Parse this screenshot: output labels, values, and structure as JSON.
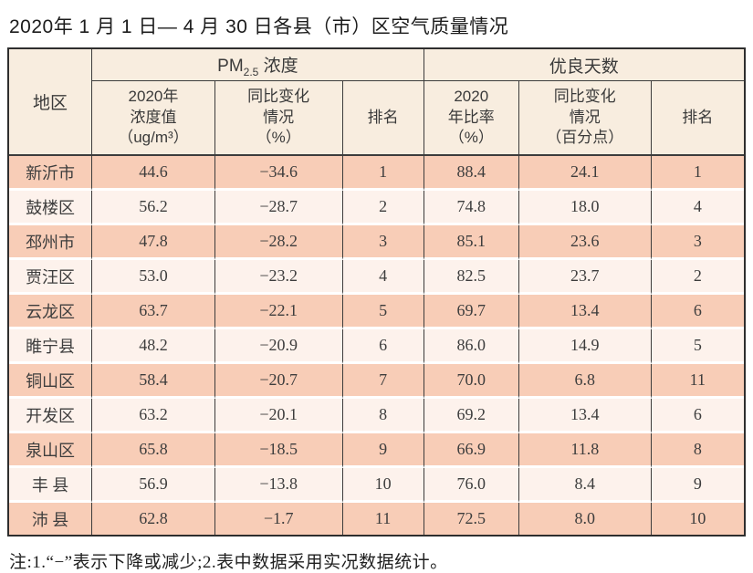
{
  "page": {
    "title": "2020年 1 月 1 日— 4 月 30 日各县（市）区空气质量情况",
    "note": "注:1.“−”表示下降或减少;2.表中数据采用实况数据统计。"
  },
  "table": {
    "corner_header": "地区",
    "groups": {
      "pm": {
        "prefix": "PM",
        "sub": "2.5",
        "suffix": " 浓度"
      },
      "good_days": {
        "label": "优良天数"
      }
    },
    "subheaders": {
      "pm_value": "2020年\n浓度值\n（ug/m³）",
      "pm_change": "同比变化\n情况\n（%）",
      "pm_rank": "排名",
      "good_ratio": "2020\n年比率\n（%）",
      "good_change": "同比变化\n情况\n（百分点）",
      "good_rank": "排名"
    },
    "rows": [
      {
        "region": "新沂市",
        "values": [
          "44.6",
          "−34.6",
          "1",
          "88.4",
          "24.1",
          "1"
        ]
      },
      {
        "region": "鼓楼区",
        "values": [
          "56.2",
          "−28.7",
          "2",
          "74.8",
          "18.0",
          "4"
        ]
      },
      {
        "region": "邳州市",
        "values": [
          "47.8",
          "−28.2",
          "3",
          "85.1",
          "23.6",
          "3"
        ]
      },
      {
        "region": "贾汪区",
        "values": [
          "53.0",
          "−23.2",
          "4",
          "82.5",
          "23.7",
          "2"
        ]
      },
      {
        "region": "云龙区",
        "values": [
          "63.7",
          "−22.1",
          "5",
          "69.7",
          "13.4",
          "6"
        ]
      },
      {
        "region": "睢宁县",
        "values": [
          "48.2",
          "−20.9",
          "6",
          "86.0",
          "14.9",
          "5"
        ]
      },
      {
        "region": "铜山区",
        "values": [
          "58.4",
          "−20.7",
          "7",
          "70.0",
          "6.8",
          "11"
        ]
      },
      {
        "region": "开发区",
        "values": [
          "63.2",
          "−20.1",
          "8",
          "69.2",
          "13.4",
          "6"
        ]
      },
      {
        "region": "泉山区",
        "values": [
          "65.8",
          "−18.5",
          "9",
          "66.9",
          "11.8",
          "8"
        ]
      },
      {
        "region": "丰 县",
        "values": [
          "56.9",
          "−13.8",
          "10",
          "76.0",
          "8.4",
          "9"
        ]
      },
      {
        "region": "沛 县",
        "values": [
          "62.8",
          "−1.7",
          "11",
          "72.5",
          "8.0",
          "10"
        ]
      }
    ],
    "colors": {
      "row_odd": "#f8cdb7",
      "row_even": "#fdf2ec",
      "header_bg": "#f8eddf",
      "border_dark": "#3c3c3c",
      "border_outer": "#2e2e2e"
    }
  }
}
